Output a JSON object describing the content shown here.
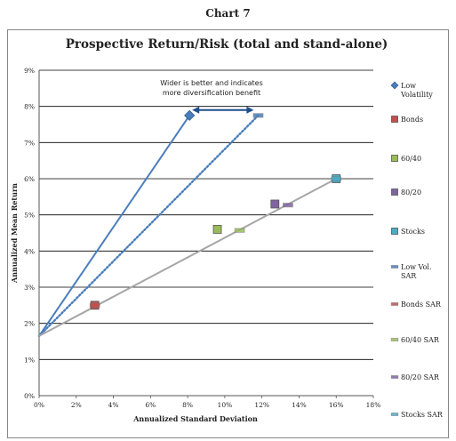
{
  "page_heading": "Chart 7",
  "chart_data": {
    "type": "scatter",
    "title": "Prospective Return/Risk (total and stand-alone)",
    "xlabel": "Annualized Standard Deviation",
    "ylabel": "Annualized Mean Return",
    "xlim": [
      0,
      18
    ],
    "ylim": [
      0,
      9
    ],
    "x_ticks": [
      "0%",
      "2%",
      "4%",
      "6%",
      "8%",
      "10%",
      "12%",
      "14%",
      "16%",
      "18%"
    ],
    "y_ticks": [
      "0%",
      "1%",
      "2%",
      "3%",
      "4%",
      "5%",
      "6%",
      "7%",
      "8%",
      "9%"
    ],
    "grid": "horizontal",
    "legend_position": "right",
    "annotation": [
      "Wider is better and indicates",
      "more diversification benefit"
    ],
    "annotation_arrow": {
      "from": [
        8.1,
        7.8
      ],
      "to": [
        11.7,
        7.8
      ]
    },
    "origin": {
      "x": 0,
      "y": 1.65
    },
    "series": [
      {
        "name": "Low Volatility",
        "color": "#4a7ebb",
        "marker": "diamond",
        "points": [
          [
            8.1,
            7.75
          ]
        ]
      },
      {
        "name": "Bonds",
        "color": "#c0504d",
        "marker": "square",
        "points": [
          [
            3.0,
            2.5
          ]
        ]
      },
      {
        "name": "60/40",
        "color": "#9bbb59",
        "marker": "square",
        "points": [
          [
            9.6,
            4.6
          ]
        ]
      },
      {
        "name": "80/20",
        "color": "#8064a2",
        "marker": "square",
        "points": [
          [
            12.7,
            5.3
          ]
        ]
      },
      {
        "name": "Stocks",
        "color": "#4bacc6",
        "marker": "square",
        "points": [
          [
            16.0,
            6.0
          ]
        ]
      },
      {
        "name": "Low Vol. SAR",
        "color": "#4a7ebb",
        "marker": "dash",
        "points": [
          [
            11.8,
            7.75
          ]
        ]
      },
      {
        "name": "Bonds SAR",
        "color": "#c0504d",
        "marker": "dash",
        "points": [
          [
            3.0,
            2.5
          ]
        ]
      },
      {
        "name": "60/40 SAR",
        "color": "#9bbb59",
        "marker": "dash",
        "points": [
          [
            10.8,
            4.57
          ]
        ]
      },
      {
        "name": "80/20 SAR",
        "color": "#8064a2",
        "marker": "dash",
        "points": [
          [
            13.4,
            5.27
          ]
        ]
      },
      {
        "name": "Stocks SAR",
        "color": "#4bacc6",
        "marker": "dash",
        "points": [
          [
            16.0,
            6.0
          ]
        ]
      }
    ],
    "lines": [
      {
        "name": "Low Volatility line",
        "style": "solid",
        "color": "#4a7ebb",
        "from": [
          0,
          1.65
        ],
        "to": [
          8.1,
          7.75
        ]
      },
      {
        "name": "Low Vol. SAR line",
        "style": "dotted",
        "color": "#4a7ebb",
        "from": [
          0,
          1.65
        ],
        "to": [
          11.8,
          7.75
        ]
      },
      {
        "name": "Stocks SAR line",
        "style": "solid",
        "color": "#a6a6a6",
        "from": [
          0,
          1.65
        ],
        "to": [
          16.0,
          6.0
        ]
      }
    ]
  }
}
